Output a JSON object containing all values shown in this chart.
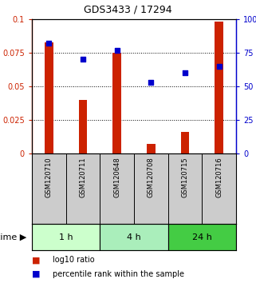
{
  "title": "GDS3433 / 17294",
  "samples": [
    "GSM120710",
    "GSM120711",
    "GSM120648",
    "GSM120708",
    "GSM120715",
    "GSM120716"
  ],
  "log10_ratio": [
    0.083,
    0.04,
    0.075,
    0.007,
    0.016,
    0.098
  ],
  "percentile_rank": [
    82,
    70,
    77,
    53,
    60,
    65
  ],
  "bar_color": "#cc2200",
  "dot_color": "#0000cc",
  "groups": [
    {
      "label": "1 h",
      "start": 0,
      "end": 2,
      "color": "#ccffcc"
    },
    {
      "label": "4 h",
      "start": 2,
      "end": 4,
      "color": "#aaeebb"
    },
    {
      "label": "24 h",
      "start": 4,
      "end": 6,
      "color": "#44cc44"
    }
  ],
  "ylim_left": [
    0,
    0.1
  ],
  "ylim_right": [
    0,
    100
  ],
  "yticks_left": [
    0,
    0.025,
    0.05,
    0.075,
    0.1
  ],
  "ytick_labels_left": [
    "0",
    "0.025",
    "0.05",
    "0.075",
    "0.1"
  ],
  "yticks_right": [
    0,
    25,
    50,
    75,
    100
  ],
  "ytick_labels_right": [
    "0",
    "25",
    "50",
    "75",
    "100%"
  ],
  "legend_bar_label": "log10 ratio",
  "legend_dot_label": "percentile rank within the sample",
  "sample_box_color": "#cccccc",
  "bar_width": 0.25,
  "title_fontsize": 9,
  "tick_fontsize": 7,
  "sample_fontsize": 6,
  "group_fontsize": 8,
  "legend_fontsize": 7
}
